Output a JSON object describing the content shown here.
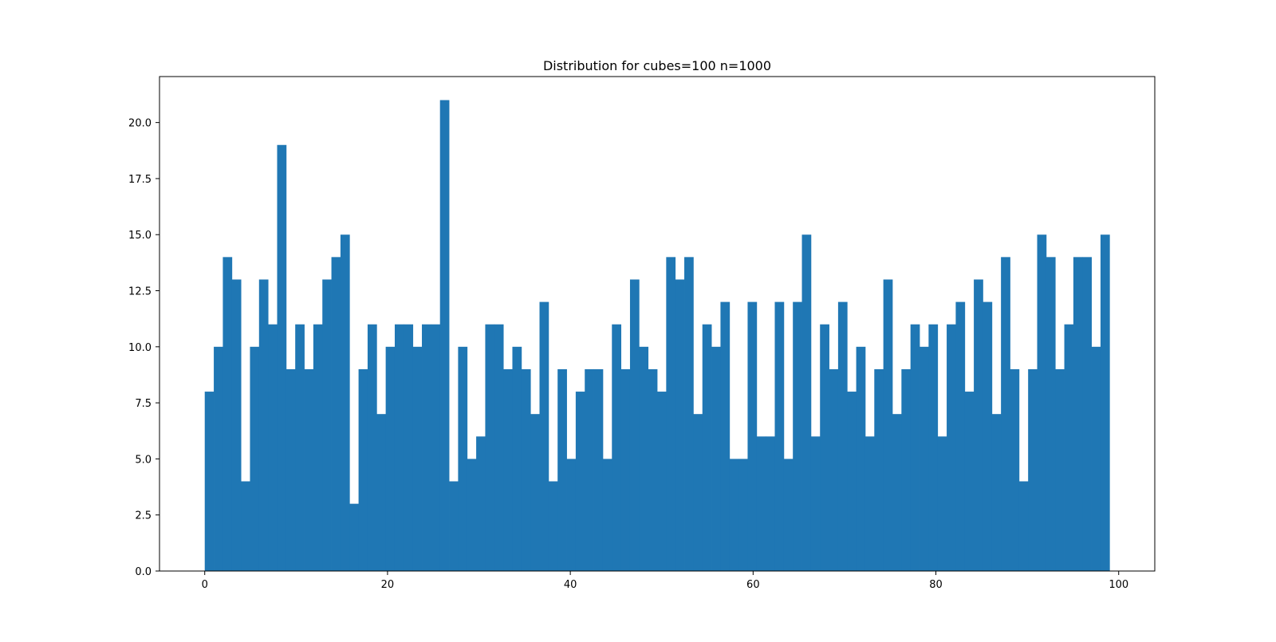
{
  "chart_data": {
    "type": "bar",
    "title": "Distribution for cubes=100 n=1000",
    "xlabel": "",
    "ylabel": "",
    "bar_color": "#1f77b4",
    "bins": {
      "start": 0,
      "end": 99,
      "count": 100
    },
    "xlim": [
      -4.95,
      103.95
    ],
    "ylim": [
      0,
      22.05
    ],
    "x_ticks": [
      0,
      20,
      40,
      60,
      80,
      100
    ],
    "x_tick_labels": [
      "0",
      "20",
      "40",
      "60",
      "80",
      "100"
    ],
    "y_ticks": [
      0,
      2.5,
      5,
      7.5,
      10,
      12.5,
      15,
      17.5,
      20
    ],
    "y_tick_labels": [
      "0.0",
      "2.5",
      "5.0",
      "7.5",
      "10.0",
      "12.5",
      "15.0",
      "17.5",
      "20.0"
    ],
    "values": [
      8,
      10,
      14,
      13,
      4,
      10,
      13,
      11,
      19,
      9,
      11,
      9,
      11,
      13,
      14,
      15,
      3,
      9,
      11,
      7,
      10,
      11,
      11,
      10,
      11,
      11,
      21,
      4,
      10,
      5,
      6,
      11,
      11,
      9,
      10,
      9,
      7,
      12,
      4,
      9,
      5,
      8,
      9,
      9,
      5,
      11,
      9,
      13,
      10,
      9,
      8,
      14,
      13,
      14,
      7,
      11,
      10,
      12,
      5,
      5,
      12,
      6,
      6,
      12,
      5,
      12,
      15,
      6,
      11,
      9,
      12,
      8,
      10,
      6,
      9,
      13,
      7,
      9,
      11,
      10,
      11,
      6,
      11,
      12,
      8,
      13,
      12,
      7,
      14,
      9,
      4,
      9,
      15,
      14,
      9,
      11,
      14,
      14,
      10,
      15
    ],
    "grid": false,
    "legend": "none"
  }
}
